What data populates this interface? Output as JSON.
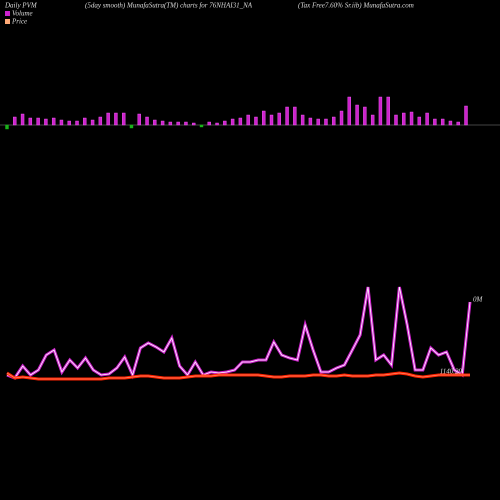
{
  "chart_data": [
    {
      "type": "bar",
      "title": "Daily PVM",
      "subtitle": "(5day smooth) MunafaSutra(TM) charts for 76NHAI31_NA",
      "source": "(Tax Free7.60% Sr.iib) MunafaSutra.com",
      "series": [
        {
          "name": "Volume",
          "color": "#cc22cc",
          "negative_color": "#22aa22",
          "values": [
            -4,
            8,
            11,
            7,
            7,
            6,
            7,
            5,
            4,
            4,
            7,
            5,
            8,
            12,
            12,
            12,
            -3,
            11,
            8,
            5,
            4,
            3,
            3,
            3,
            2,
            -2,
            3,
            2,
            4,
            6,
            7,
            10,
            8,
            14,
            10,
            12,
            18,
            18,
            10,
            7,
            6,
            6,
            8,
            14,
            28,
            20,
            18,
            10,
            28,
            28,
            10,
            12,
            13,
            8,
            12,
            6,
            6,
            4,
            3,
            19
          ]
        }
      ],
      "ylim": [
        -10,
        30
      ]
    },
    {
      "type": "line",
      "annotations": [
        "0M",
        "1140.29"
      ],
      "series": [
        {
          "name": "Volume",
          "color": "#cc22cc",
          "values": [
            25,
            22,
            34,
            25,
            30,
            45,
            50,
            28,
            40,
            32,
            42,
            30,
            25,
            26,
            32,
            43,
            25,
            52,
            57,
            53,
            48,
            62,
            34,
            25,
            38,
            25,
            28,
            27,
            28,
            30,
            38,
            38,
            40,
            40,
            58,
            45,
            42,
            40,
            75,
            50,
            28,
            28,
            32,
            35,
            50,
            65,
            113,
            40,
            45,
            35,
            113,
            75,
            30,
            30,
            52,
            45,
            48,
            30,
            25,
            98
          ]
        },
        {
          "name": "Price",
          "color": "#ff2200",
          "values": [
            27,
            22,
            23,
            22,
            21,
            21,
            21,
            21,
            21,
            21,
            21,
            21,
            21,
            22,
            22,
            22,
            23,
            24,
            24,
            23,
            22,
            22,
            22,
            23,
            24,
            24,
            24,
            25,
            25,
            25,
            25,
            25,
            25,
            24,
            23,
            23,
            24,
            24,
            24,
            25,
            25,
            24,
            24,
            25,
            24,
            24,
            24,
            25,
            25,
            26,
            27,
            26,
            24,
            23,
            24,
            25,
            25,
            25,
            25,
            25
          ]
        }
      ],
      "ylim": [
        0,
        130
      ]
    }
  ]
}
